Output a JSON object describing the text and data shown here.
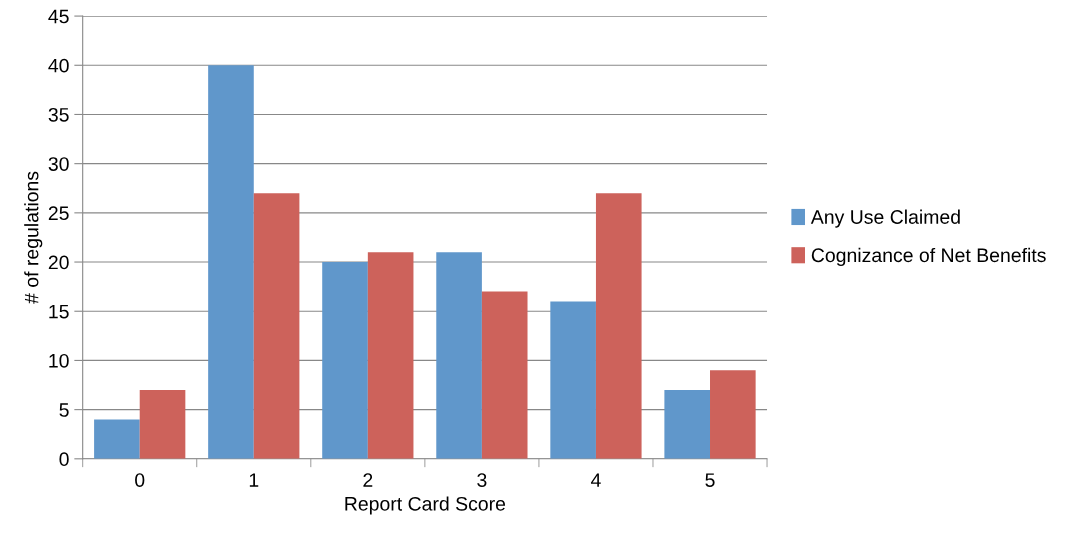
{
  "chart_data": {
    "type": "bar",
    "xlabel": "Report Card Score",
    "ylabel": "# of regulations",
    "categories": [
      "0",
      "1",
      "2",
      "3",
      "4",
      "5"
    ],
    "series": [
      {
        "name": "Any Use Claimed",
        "color": "#6097cb",
        "values": [
          4,
          40,
          20,
          21,
          16,
          7
        ]
      },
      {
        "name": "Cognizance of Net Benefits",
        "color": "#cd625b",
        "values": [
          7,
          27,
          21,
          17,
          27,
          9
        ]
      }
    ],
    "ylim": [
      0,
      45
    ],
    "yticks": [
      0,
      5,
      10,
      15,
      20,
      25,
      30,
      35,
      40,
      45
    ],
    "grid": "y",
    "legend": "right"
  }
}
